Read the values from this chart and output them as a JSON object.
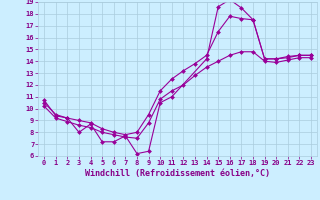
{
  "xlabel": "Windchill (Refroidissement éolien,°C)",
  "background_color": "#cceeff",
  "grid_color": "#aaccdd",
  "line_color": "#990099",
  "xlim": [
    -0.5,
    23.5
  ],
  "ylim": [
    6,
    19
  ],
  "xticks": [
    0,
    1,
    2,
    3,
    4,
    5,
    6,
    7,
    8,
    9,
    10,
    11,
    12,
    13,
    14,
    15,
    16,
    17,
    18,
    19,
    20,
    21,
    22,
    23
  ],
  "yticks": [
    6,
    7,
    8,
    9,
    10,
    11,
    12,
    13,
    14,
    15,
    16,
    17,
    18,
    19
  ],
  "series": [
    {
      "x": [
        0,
        1,
        2,
        3,
        4,
        5,
        6,
        7,
        8,
        9,
        10,
        11,
        14,
        15,
        16,
        17,
        18,
        19,
        20,
        21,
        22,
        23
      ],
      "y": [
        10.7,
        9.4,
        9.2,
        8.0,
        8.7,
        7.2,
        7.2,
        7.7,
        6.2,
        6.4,
        10.5,
        11.0,
        14.2,
        18.6,
        19.2,
        18.5,
        17.5,
        14.2,
        14.2,
        14.3,
        14.5,
        14.5
      ],
      "marker": "D",
      "markersize": 2.0,
      "linewidth": 0.8
    },
    {
      "x": [
        0,
        1,
        2,
        3,
        4,
        5,
        6,
        7,
        8,
        9,
        10,
        11,
        12,
        13,
        14,
        15,
        16,
        17,
        18,
        19,
        20,
        21,
        22,
        23
      ],
      "y": [
        10.5,
        9.5,
        9.2,
        9.0,
        8.8,
        8.3,
        8.0,
        7.8,
        8.0,
        9.5,
        11.5,
        12.5,
        13.2,
        13.8,
        14.5,
        16.5,
        17.8,
        17.6,
        17.5,
        14.2,
        14.2,
        14.4,
        14.5,
        14.5
      ],
      "marker": "D",
      "markersize": 2.0,
      "linewidth": 0.8
    },
    {
      "x": [
        0,
        1,
        2,
        3,
        4,
        5,
        6,
        7,
        8,
        9,
        10,
        11,
        12,
        13,
        14,
        15,
        16,
        17,
        18,
        19,
        20,
        21,
        22,
        23
      ],
      "y": [
        10.2,
        9.2,
        8.9,
        8.6,
        8.4,
        8.0,
        7.8,
        7.6,
        7.5,
        8.8,
        10.8,
        11.5,
        12.0,
        12.8,
        13.5,
        14.0,
        14.5,
        14.8,
        14.8,
        14.0,
        13.9,
        14.1,
        14.3,
        14.3
      ],
      "marker": "D",
      "markersize": 2.0,
      "linewidth": 0.8
    }
  ],
  "tick_fontsize": 5.0,
  "xlabel_fontsize": 6.0,
  "label_color": "#880088",
  "tick_color": "#880088"
}
